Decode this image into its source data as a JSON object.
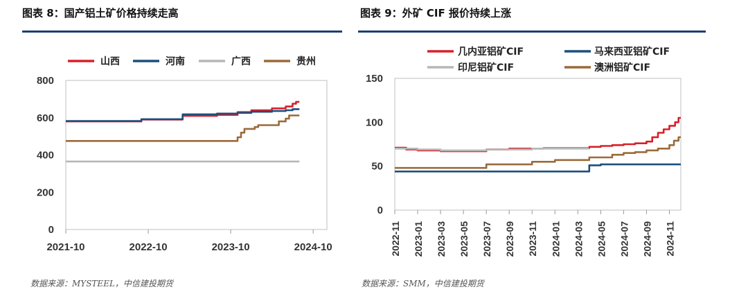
{
  "left": {
    "title": "图表 8：国产铝土矿价格持续走高",
    "source": "数据来源：MYSTEEL，中信建投期货"
  },
  "right": {
    "title": "图表 9：外矿 CIF 报价持续上涨",
    "source": "数据来源：SMM，中信建投期货"
  },
  "chart_data": [
    {
      "type": "line",
      "title": "",
      "xlabel": "",
      "ylabel": "",
      "ylim": [
        0,
        800
      ],
      "yticks": [
        0,
        200,
        400,
        600,
        800
      ],
      "xticks": [
        "2021-10",
        "2022-10",
        "2023-10",
        "2024-10"
      ],
      "xlim": [
        0,
        38
      ],
      "grid": false,
      "legend_position": "top",
      "series": [
        {
          "name": "山西",
          "color": "#d7202a",
          "step": true,
          "points": [
            [
              0,
              580
            ],
            [
              11,
              580
            ],
            [
              11,
              590
            ],
            [
              17,
              590
            ],
            [
              17,
              610
            ],
            [
              22,
              610
            ],
            [
              22,
              615
            ],
            [
              25,
              615
            ],
            [
              25,
              630
            ],
            [
              27,
              630
            ],
            [
              27,
              640
            ],
            [
              30,
              640
            ],
            [
              30,
              650
            ],
            [
              32,
              650
            ],
            [
              32,
              660
            ],
            [
              33,
              660
            ],
            [
              33,
              675
            ],
            [
              33.5,
              675
            ],
            [
              33.5,
              685
            ],
            [
              34,
              685
            ]
          ]
        },
        {
          "name": "河南",
          "color": "#1c4f7c",
          "step": true,
          "points": [
            [
              0,
              582
            ],
            [
              11,
              582
            ],
            [
              11,
              592
            ],
            [
              17,
              592
            ],
            [
              17,
              618
            ],
            [
              22,
              618
            ],
            [
              22,
              622
            ],
            [
              25,
              622
            ],
            [
              25,
              626
            ],
            [
              27,
              626
            ],
            [
              27,
              632
            ],
            [
              30,
              632
            ],
            [
              30,
              636
            ],
            [
              32,
              636
            ],
            [
              32,
              640
            ],
            [
              33,
              640
            ],
            [
              33,
              646
            ],
            [
              34,
              646
            ]
          ]
        },
        {
          "name": "广西",
          "color": "#b7b7b7",
          "step": false,
          "points": [
            [
              0,
              365
            ],
            [
              34,
              365
            ]
          ]
        },
        {
          "name": "贵州",
          "color": "#9b6a3a",
          "step": true,
          "points": [
            [
              0,
              475
            ],
            [
              25,
              475
            ],
            [
              25,
              495
            ],
            [
              25.5,
              495
            ],
            [
              25.5,
              520
            ],
            [
              26,
              520
            ],
            [
              26,
              540
            ],
            [
              27.5,
              540
            ],
            [
              27.5,
              550
            ],
            [
              28,
              550
            ],
            [
              28,
              560
            ],
            [
              31,
              560
            ],
            [
              31,
              580
            ],
            [
              32,
              580
            ],
            [
              32,
              595
            ],
            [
              32.5,
              595
            ],
            [
              32.5,
              612
            ],
            [
              34,
              612
            ]
          ]
        }
      ]
    },
    {
      "type": "line",
      "title": "",
      "xlabel": "",
      "ylabel": "",
      "ylim": [
        0,
        150
      ],
      "yticks": [
        0,
        50,
        100,
        150
      ],
      "xticks": [
        "2022-11",
        "2023-01",
        "2023-03",
        "2023-05",
        "2023-07",
        "2023-09",
        "2023-11",
        "2024-01",
        "2024-03",
        "2024-05",
        "2024-07",
        "2024-09",
        "2024-11"
      ],
      "xlim": [
        0,
        25
      ],
      "grid": false,
      "legend_position": "top",
      "series": [
        {
          "name": "几内亚铝矿CIF",
          "color": "#d7202a",
          "step": true,
          "points": [
            [
              0,
              71
            ],
            [
              1,
              71
            ],
            [
              1,
              69
            ],
            [
              2,
              69
            ],
            [
              2,
              68
            ],
            [
              4,
              68
            ],
            [
              4,
              67
            ],
            [
              8,
              67
            ],
            [
              8,
              69
            ],
            [
              10,
              69
            ],
            [
              10,
              70
            ],
            [
              13,
              70
            ],
            [
              13,
              70.5
            ],
            [
              17,
              70.5
            ],
            [
              17,
              72
            ],
            [
              18,
              72
            ],
            [
              18,
              73
            ],
            [
              19,
              73
            ],
            [
              19,
              74
            ],
            [
              20,
              74
            ],
            [
              20,
              75
            ],
            [
              21,
              75
            ],
            [
              21,
              76
            ],
            [
              22,
              76
            ],
            [
              22,
              78
            ],
            [
              22.5,
              78
            ],
            [
              22.5,
              83
            ],
            [
              23,
              83
            ],
            [
              23,
              88
            ],
            [
              23.5,
              88
            ],
            [
              23.5,
              92
            ],
            [
              24,
              92
            ],
            [
              24,
              96
            ],
            [
              24.5,
              96
            ],
            [
              24.5,
              100
            ],
            [
              24.8,
              100
            ],
            [
              24.8,
              105
            ],
            [
              25,
              105
            ]
          ]
        },
        {
          "name": "马来西亚铝矿CIF",
          "color": "#1c4f7c",
          "step": true,
          "points": [
            [
              0,
              44
            ],
            [
              17,
              44
            ],
            [
              17,
              51
            ],
            [
              18,
              51
            ],
            [
              18,
              52
            ],
            [
              25,
              52
            ]
          ]
        },
        {
          "name": "印尼铝矿CIF",
          "color": "#b7b7b7",
          "step": true,
          "points": [
            [
              0,
              70
            ],
            [
              2,
              70
            ],
            [
              2,
              69
            ],
            [
              4,
              69
            ],
            [
              4,
              68
            ],
            [
              8,
              68
            ],
            [
              8,
              69
            ],
            [
              12,
              69
            ],
            [
              12,
              70
            ],
            [
              17,
              70
            ]
          ]
        },
        {
          "name": "澳洲铝矿CIF",
          "color": "#9b6a3a",
          "step": true,
          "points": [
            [
              0,
              48
            ],
            [
              8,
              48
            ],
            [
              8,
              52
            ],
            [
              12,
              52
            ],
            [
              12,
              55
            ],
            [
              14,
              55
            ],
            [
              14,
              57
            ],
            [
              17,
              57
            ],
            [
              17,
              60
            ],
            [
              19,
              60
            ],
            [
              19,
              63
            ],
            [
              20,
              63
            ],
            [
              20,
              65
            ],
            [
              21,
              65
            ],
            [
              21,
              66
            ],
            [
              22,
              66
            ],
            [
              22,
              68
            ],
            [
              23,
              68
            ],
            [
              23,
              70
            ],
            [
              24,
              70
            ],
            [
              24,
              74
            ],
            [
              24.4,
              74
            ],
            [
              24.4,
              79
            ],
            [
              24.8,
              79
            ],
            [
              24.8,
              83
            ],
            [
              25,
              83
            ]
          ]
        }
      ]
    }
  ]
}
